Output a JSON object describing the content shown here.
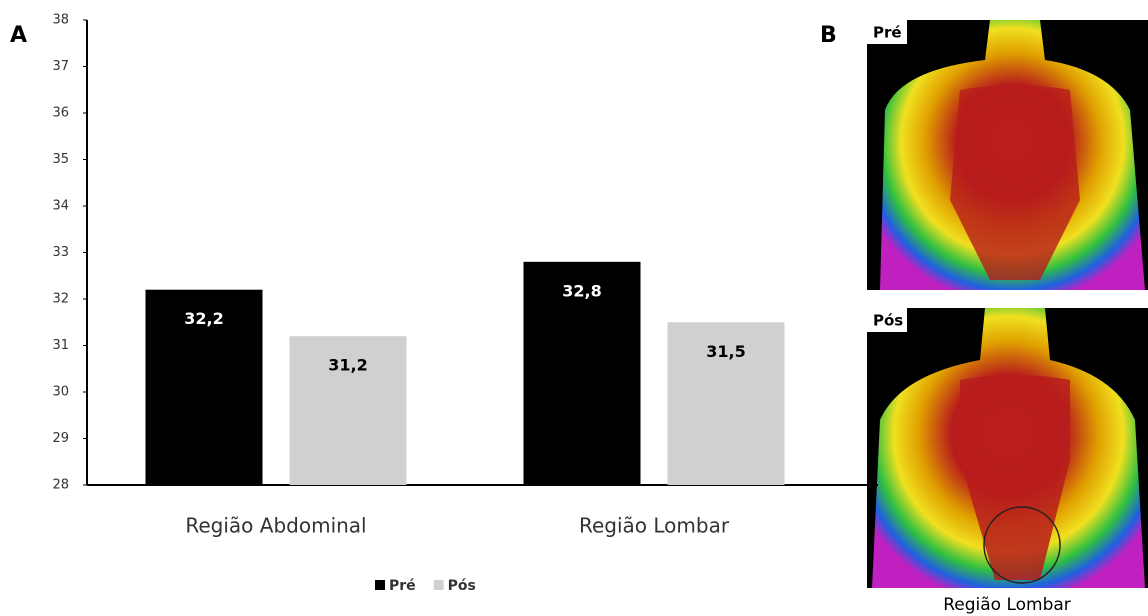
{
  "chart_data": {
    "type": "bar",
    "categories": [
      "Região Abdominal",
      "Região Lombar"
    ],
    "series": [
      {
        "name": "Pré",
        "color": "#000000",
        "values": [
          32.2,
          32.8
        ],
        "value_labels": [
          "32,2",
          "32,8"
        ]
      },
      {
        "name": "Pós",
        "color": "#d0d0d0",
        "values": [
          31.2,
          31.5
        ],
        "value_labels": [
          "31,2",
          "31,5"
        ]
      }
    ],
    "ylim": [
      28,
      38
    ],
    "yticks": [
      28,
      29,
      30,
      31,
      32,
      33,
      34,
      35,
      36,
      37,
      38
    ],
    "legend": "bottom"
  },
  "panel_labels": [
    "A",
    "B"
  ],
  "images": [
    {
      "label": "Pré"
    },
    {
      "label": "Pós"
    }
  ],
  "image_caption": "Região Lombar"
}
